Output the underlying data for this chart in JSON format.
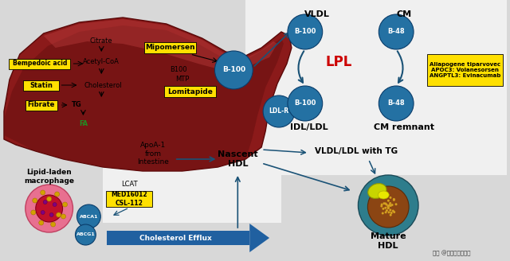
{
  "bg_color": "#d8d8d8",
  "liver_color": "#8B1A1A",
  "blue_circle_face": "#2471a3",
  "blue_circle_edge": "#0a3d6b",
  "yellow_box_color": "#FFE000",
  "arrow_blue": "#1a5276",
  "lpl_color": "#cc0000",
  "labels": {
    "VLDL": "VLDL",
    "CM": "CM",
    "IDL_LDL": "IDL/LDL",
    "CM_remnant": "CM remnant",
    "LPL": "LPL",
    "VLDL_LDL_TG": "VLDL/LDL with TG",
    "Nascent_HDL": "Nascent\nHDL",
    "Mature_HDL": "Mature\nHDL",
    "Lipid_laden": "Lipid-laden\nmacrophage",
    "ApoA1": "ApoA-1\nfrom\nIntestine",
    "Cholesterol_Efflux": "Cholesterol Efflux",
    "LCAT": "LCAT",
    "watermark": "头条 @徐医生在线课堂"
  },
  "drug_boxes": {
    "Bempedoic_acid": "Bempedoic acid",
    "Statin": "Statin",
    "Fibrate": "Fibrate",
    "Mipomersen": "Mipomersen",
    "Lomitapide": "Lomitapide",
    "MED16012": "MED16012\nCSL-112",
    "Alirocumab_box": "Aliapogene tiparvovec\nAPOC3: Volanesorsen\nANGPTL3: Evinacumab"
  },
  "pathway_labels": {
    "Citrate": "Citrate",
    "Acetyl_CoA": "Acetyl-CoA",
    "Cholesterol": "Cholesterol",
    "TG": "TG",
    "FA": "FA",
    "B100_text": "B100",
    "MTP_text": "MTP",
    "B100_circle": "B-100",
    "B48_circle": "B-48",
    "ABCA1": "ABCA1",
    "ABCG1": "ABCG1",
    "LDLR": "LDL-R"
  }
}
